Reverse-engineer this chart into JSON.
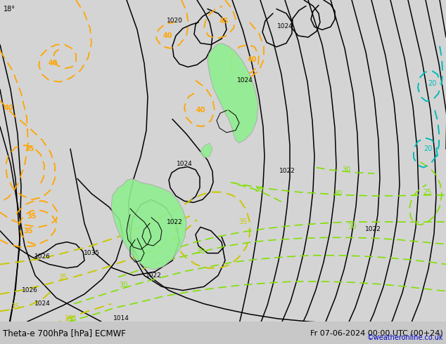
{
  "title_left": "Theta-e 700hPa [hPa] ECMWF",
  "title_right": "Fr 07-06-2024 00:00 UTC (00+24)",
  "credit": "©weatheronline.co.uk",
  "bg_color": "#d4d4d4",
  "map_bg_color": "#e2e2e2",
  "pressure_color": "#000000",
  "orange_color": "#FFA500",
  "yellow_color": "#C8C800",
  "green_color": "#80E000",
  "cyan_color": "#00BBBB",
  "font_size_title": 8.5,
  "font_size_label": 6.5
}
